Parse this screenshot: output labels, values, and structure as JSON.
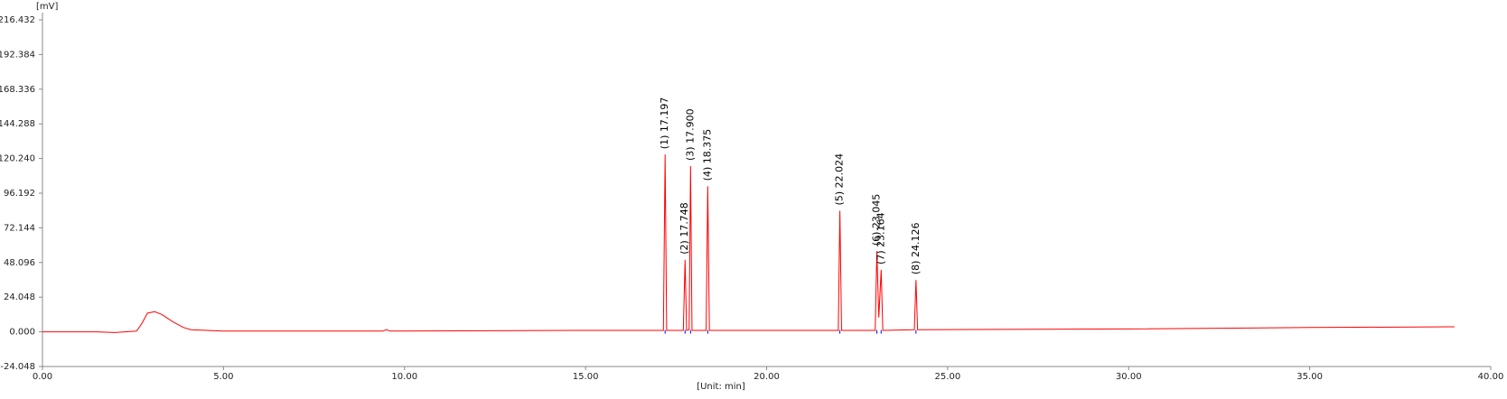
{
  "chart_data": {
    "type": "line",
    "y_label": "[mV]",
    "x_label": "[Unit: min]",
    "color": "#ff0000",
    "marker_color": "#0000ff",
    "xlim": [
      0,
      40
    ],
    "ylim": [
      -24.048,
      216.432
    ],
    "xticks": [
      {
        "value": 0,
        "label": "0.00"
      },
      {
        "value": 5,
        "label": "5.00"
      },
      {
        "value": 10,
        "label": "10.00"
      },
      {
        "value": 15,
        "label": "15.00"
      },
      {
        "value": 20,
        "label": "20.00"
      },
      {
        "value": 25,
        "label": "25.00"
      },
      {
        "value": 30,
        "label": "30.00"
      },
      {
        "value": 35,
        "label": "35.00"
      },
      {
        "value": 40,
        "label": "40.00"
      }
    ],
    "yticks": [
      -24.048,
      {
        "value": 0,
        "label": "0.000"
      },
      24.048,
      48.096,
      72.144,
      96.192,
      {
        "value": 120.24,
        "label": "120.240"
      },
      144.288,
      168.336,
      192.384,
      216.432
    ],
    "x": [
      0,
      1.5,
      2.0,
      2.6,
      2.75,
      2.9,
      3.1,
      3.3,
      3.6,
      3.9,
      4.1,
      5.0,
      9.4,
      9.5,
      9.6,
      15.0,
      17.15,
      17.197,
      17.24,
      17.7,
      17.748,
      17.79,
      17.86,
      17.9,
      17.94,
      18.33,
      18.375,
      18.42,
      21.98,
      22.024,
      22.07,
      23.0,
      23.045,
      23.1,
      23.164,
      23.21,
      24.08,
      24.126,
      24.17,
      30,
      35,
      39.0
    ],
    "values": [
      0,
      0,
      -0.5,
      0.5,
      6,
      13,
      14,
      12,
      7,
      3,
      1.5,
      0.5,
      0.5,
      1.5,
      0.5,
      1,
      1,
      123,
      1,
      1,
      50,
      1,
      1.5,
      115,
      1,
      1,
      101,
      1,
      1,
      84,
      1,
      1,
      56,
      10,
      43,
      1,
      1.5,
      36,
      1.5,
      2,
      3,
      3.5
    ],
    "annotations": [
      {
        "text": "(1) 17.197",
        "x": 17.197,
        "y": 123
      },
      {
        "text": "(2) 17.748",
        "x": 17.748,
        "y": 50
      },
      {
        "text": "(3) 17.900",
        "x": 17.9,
        "y": 115
      },
      {
        "text": "(4) 18.375",
        "x": 18.375,
        "y": 101
      },
      {
        "text": "(5) 22.024",
        "x": 22.024,
        "y": 84
      },
      {
        "text": "(6) 23.045",
        "x": 23.045,
        "y": 56
      },
      {
        "text": "(7) 23.164",
        "x": 23.164,
        "y": 43
      },
      {
        "text": "(8) 24.126",
        "x": 24.126,
        "y": 36
      }
    ]
  }
}
